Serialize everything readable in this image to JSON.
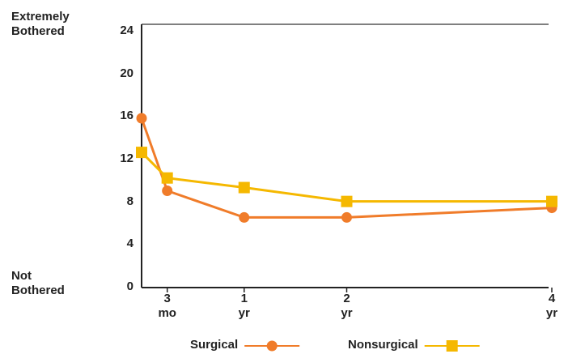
{
  "chart_data": {
    "type": "line",
    "y_top_label": "Extremely\nBothered",
    "y_bottom_label": "Not\nBothered",
    "x": [
      0,
      3,
      12,
      24,
      48
    ],
    "xlim": [
      0,
      48
    ],
    "xticks": [
      {
        "value": 3,
        "label": "3\nmo"
      },
      {
        "value": 12,
        "label": "1\nyr"
      },
      {
        "value": 24,
        "label": "2\nyr"
      },
      {
        "value": 48,
        "label": "4\nyr"
      }
    ],
    "ylim": [
      0,
      24
    ],
    "yticks": [
      0,
      4,
      8,
      12,
      16,
      20,
      24
    ],
    "series": [
      {
        "name": "Surgical",
        "color": "#f07c2a",
        "marker": "circle",
        "values": [
          15.8,
          9,
          6.5,
          6.5,
          7.4
        ]
      },
      {
        "name": "Nonsurgical",
        "color": "#f5b800",
        "marker": "square",
        "values": [
          12.6,
          10.2,
          9.3,
          8,
          8
        ]
      }
    ]
  }
}
